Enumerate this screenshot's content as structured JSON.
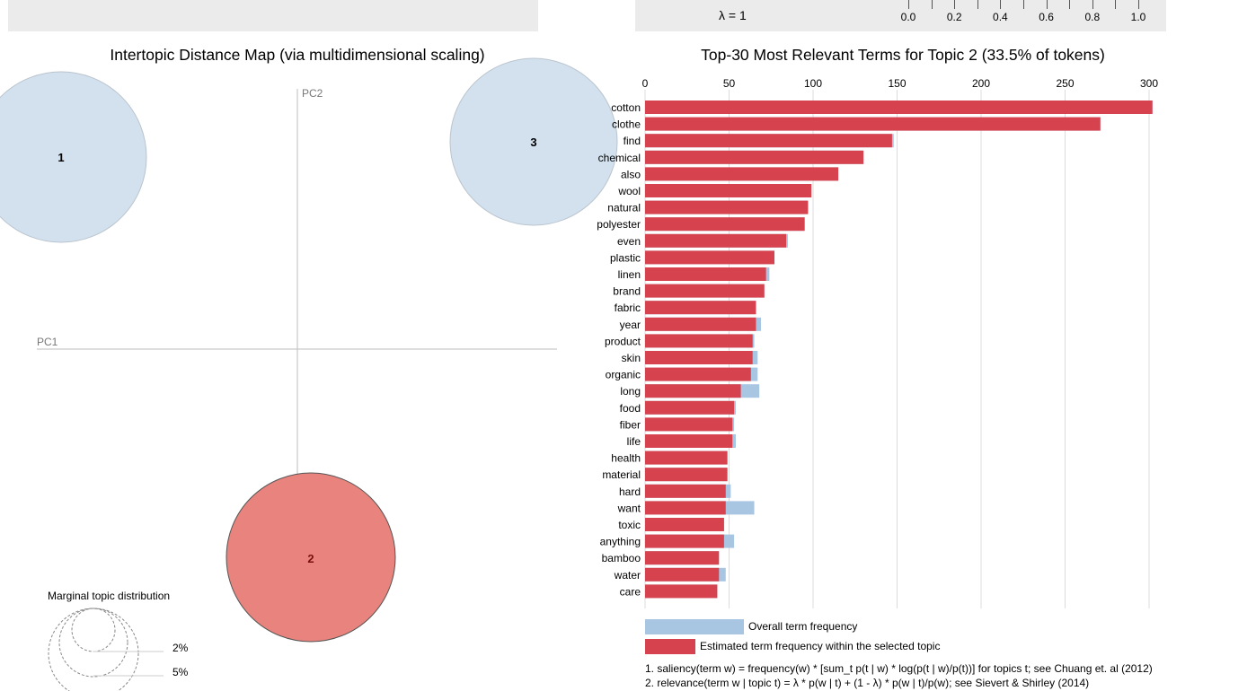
{
  "header": {
    "lambda_label": "λ = 1",
    "slider_ticks": [
      "0.0",
      "0.2",
      "0.4",
      "0.6",
      "0.8",
      "1.0"
    ]
  },
  "left_panel": {
    "title": "Intertopic Distance Map (via multidimensional scaling)",
    "axis_pc1": "PC1",
    "axis_pc2": "PC2",
    "topics": [
      {
        "label": "1",
        "selected": false
      },
      {
        "label": "2",
        "selected": true
      },
      {
        "label": "3",
        "selected": false
      }
    ],
    "marginal": {
      "title": "Marginal topic distribution",
      "labels": [
        "2%",
        "5%"
      ]
    }
  },
  "right_panel": {
    "title": "Top-30 Most Relevant Terms for Topic 2 (33.5% of tokens)",
    "legend": {
      "overall": "Overall term frequency",
      "estimated": "Estimated term frequency within the selected topic"
    },
    "footnotes": [
      "1. saliency(term w) = frequency(w) * [sum_t p(t | w) * log(p(t | w)/p(t))] for topics t; see Chuang et. al (2012)",
      "2. relevance(term w | topic t) = λ * p(w | t) + (1 - λ) * p(w | t)/p(w); see Sievert & Shirley (2014)"
    ]
  },
  "colors": {
    "topic_bar": "#d6434f",
    "overall_bar": "#a8c6e2",
    "bubble_default": "#d3e1ee",
    "bubble_selected": "#e8837d",
    "panel_bg": "#ebebeb"
  },
  "chart_data": {
    "type": "bar",
    "orientation": "horizontal",
    "xlim": [
      0,
      300
    ],
    "x_ticks": [
      0,
      50,
      100,
      150,
      200,
      250,
      300
    ],
    "categories": [
      "cotton",
      "clothe",
      "find",
      "chemical",
      "also",
      "wool",
      "natural",
      "polyester",
      "even",
      "plastic",
      "linen",
      "brand",
      "fabric",
      "year",
      "product",
      "skin",
      "organic",
      "long",
      "food",
      "fiber",
      "life",
      "health",
      "material",
      "hard",
      "want",
      "toxic",
      "anything",
      "bamboo",
      "water",
      "care"
    ],
    "series": [
      {
        "name": "Overall term frequency",
        "values": [
          302,
          271,
          148,
          130,
          115,
          99,
          97,
          95,
          85,
          77,
          74,
          71,
          66,
          69,
          65,
          67,
          67,
          68,
          54,
          53,
          54,
          49,
          49,
          51,
          65,
          47,
          53,
          44,
          48,
          43
        ]
      },
      {
        "name": "Estimated term frequency within the selected topic",
        "values": [
          302,
          271,
          147,
          130,
          115,
          99,
          97,
          95,
          84,
          77,
          72,
          71,
          66,
          66,
          64,
          64,
          63,
          57,
          53,
          52,
          52,
          49,
          49,
          48,
          48,
          47,
          47,
          44,
          44,
          43
        ]
      }
    ]
  }
}
